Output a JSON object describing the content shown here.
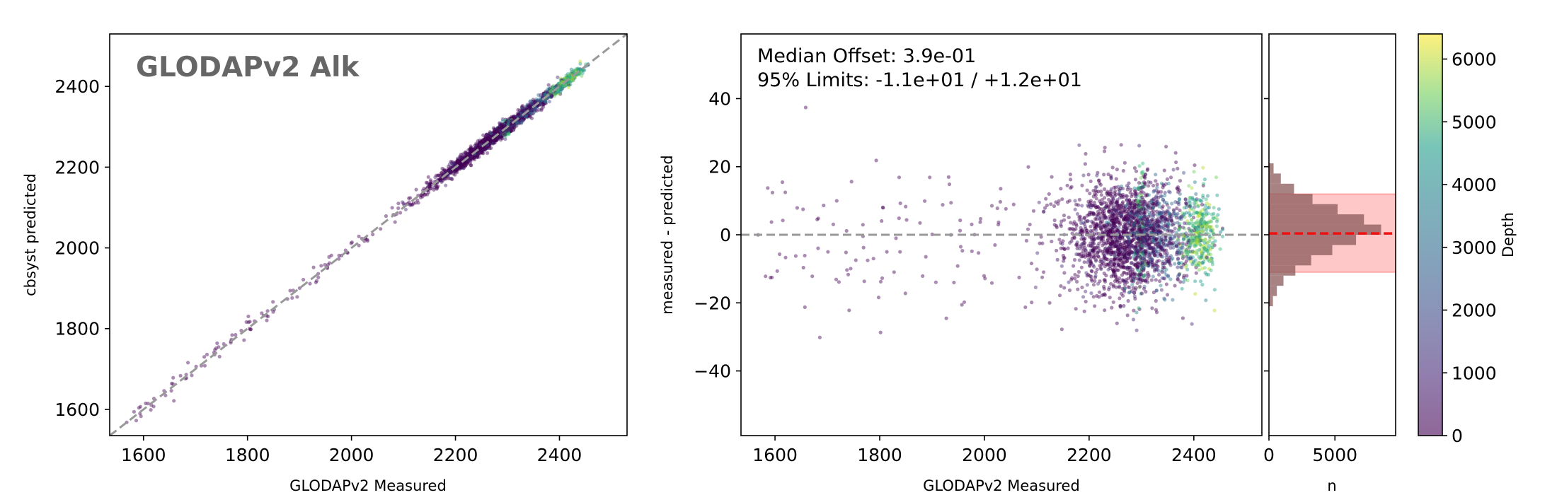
{
  "chart_data": [
    {
      "type": "scatter",
      "title": "GLODAPv2 Alk",
      "xlabel": "GLODAPv2 Measured",
      "ylabel": "cbsyst predicted",
      "xlim": [
        1535,
        2530
      ],
      "ylim": [
        1535,
        2530
      ],
      "xticks": [
        1600,
        1800,
        2000,
        2200,
        2400
      ],
      "yticks": [
        1600,
        1800,
        2000,
        2200,
        2400
      ],
      "reference_line": {
        "type": "1:1",
        "style": "dashed",
        "color": "#999999"
      },
      "color_by": "Depth",
      "grid": false
    },
    {
      "type": "scatter",
      "xlabel": "GLODAPv2 Measured",
      "ylabel": "measured - predicted",
      "xlim": [
        1535,
        2530
      ],
      "ylim": [
        -59,
        59
      ],
      "xticks": [
        1600,
        1800,
        2000,
        2200,
        2400
      ],
      "yticks": [
        -40,
        -20,
        0,
        20,
        40
      ],
      "reference_line": {
        "y": 0,
        "style": "dashed",
        "color": "#999999"
      },
      "annotations": [
        "Median Offset: 3.9e-01",
        "95% Limits: -1.1e+01 / +1.2e+01"
      ],
      "median_offset": 0.39,
      "limits_95": [
        -11,
        12
      ],
      "color_by": "Depth",
      "grid": false
    },
    {
      "type": "histogram",
      "orientation": "horizontal",
      "xlabel": "n",
      "xlim": [
        0,
        9600
      ],
      "xticks": [
        0,
        5000
      ],
      "bins": [
        -21,
        -18,
        -15,
        -12,
        -9,
        -6,
        -3,
        0,
        3,
        6,
        9,
        12,
        15,
        18,
        21
      ],
      "counts": [
        300,
        600,
        1100,
        2000,
        3200,
        4800,
        6600,
        8500,
        7200,
        5200,
        3300,
        1900,
        900,
        350
      ],
      "median_offset": 0.39,
      "limits_95": [
        -11,
        12
      ],
      "band_color": "#ffaaaa",
      "median_line_color": "#ee1111",
      "bar_color": "#8a5a5a"
    },
    {
      "type": "colorbar",
      "label": "Depth",
      "range": [
        0,
        6400
      ],
      "ticks": [
        0,
        1000,
        2000,
        3000,
        4000,
        5000,
        6000
      ],
      "colormap": "viridis"
    }
  ]
}
